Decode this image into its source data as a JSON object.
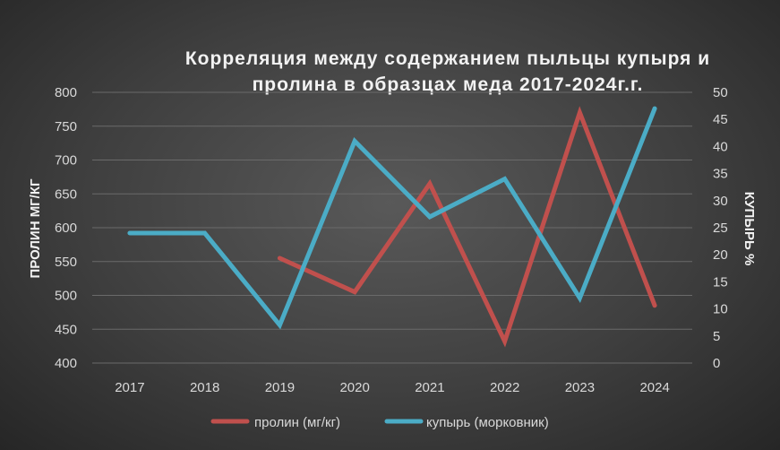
{
  "chart_data": {
    "type": "line",
    "title_line1": "Корреляция между содержанием пыльцы купыря и",
    "title_line2": "пролина в образцах меда 2017-2024г.г.",
    "categories": [
      "2017",
      "2018",
      "2019",
      "2020",
      "2021",
      "2022",
      "2023",
      "2024"
    ],
    "y_left_label": "ПРОЛИН МГ/КГ",
    "y_right_label": "КУПЫРЬ %",
    "y_left_range": [
      400,
      800
    ],
    "y_left_ticks": [
      "400",
      "450",
      "500",
      "550",
      "600",
      "650",
      "700",
      "750",
      "800"
    ],
    "y_right_range": [
      0,
      50
    ],
    "y_right_ticks": [
      "0",
      "5",
      "10",
      "15",
      "20",
      "25",
      "30",
      "35",
      "40",
      "45",
      "50"
    ],
    "grid": true,
    "legend_position": "bottom",
    "series": [
      {
        "name": "пролин (мг/кг)",
        "axis": "left",
        "color": "#c0504d",
        "values": [
          null,
          null,
          555,
          505,
          665,
          432,
          770,
          485
        ]
      },
      {
        "name": "купырь (морковник)",
        "axis": "right",
        "color": "#4bacc6",
        "values": [
          24,
          24,
          7,
          41,
          27,
          34,
          12,
          47
        ]
      }
    ]
  }
}
